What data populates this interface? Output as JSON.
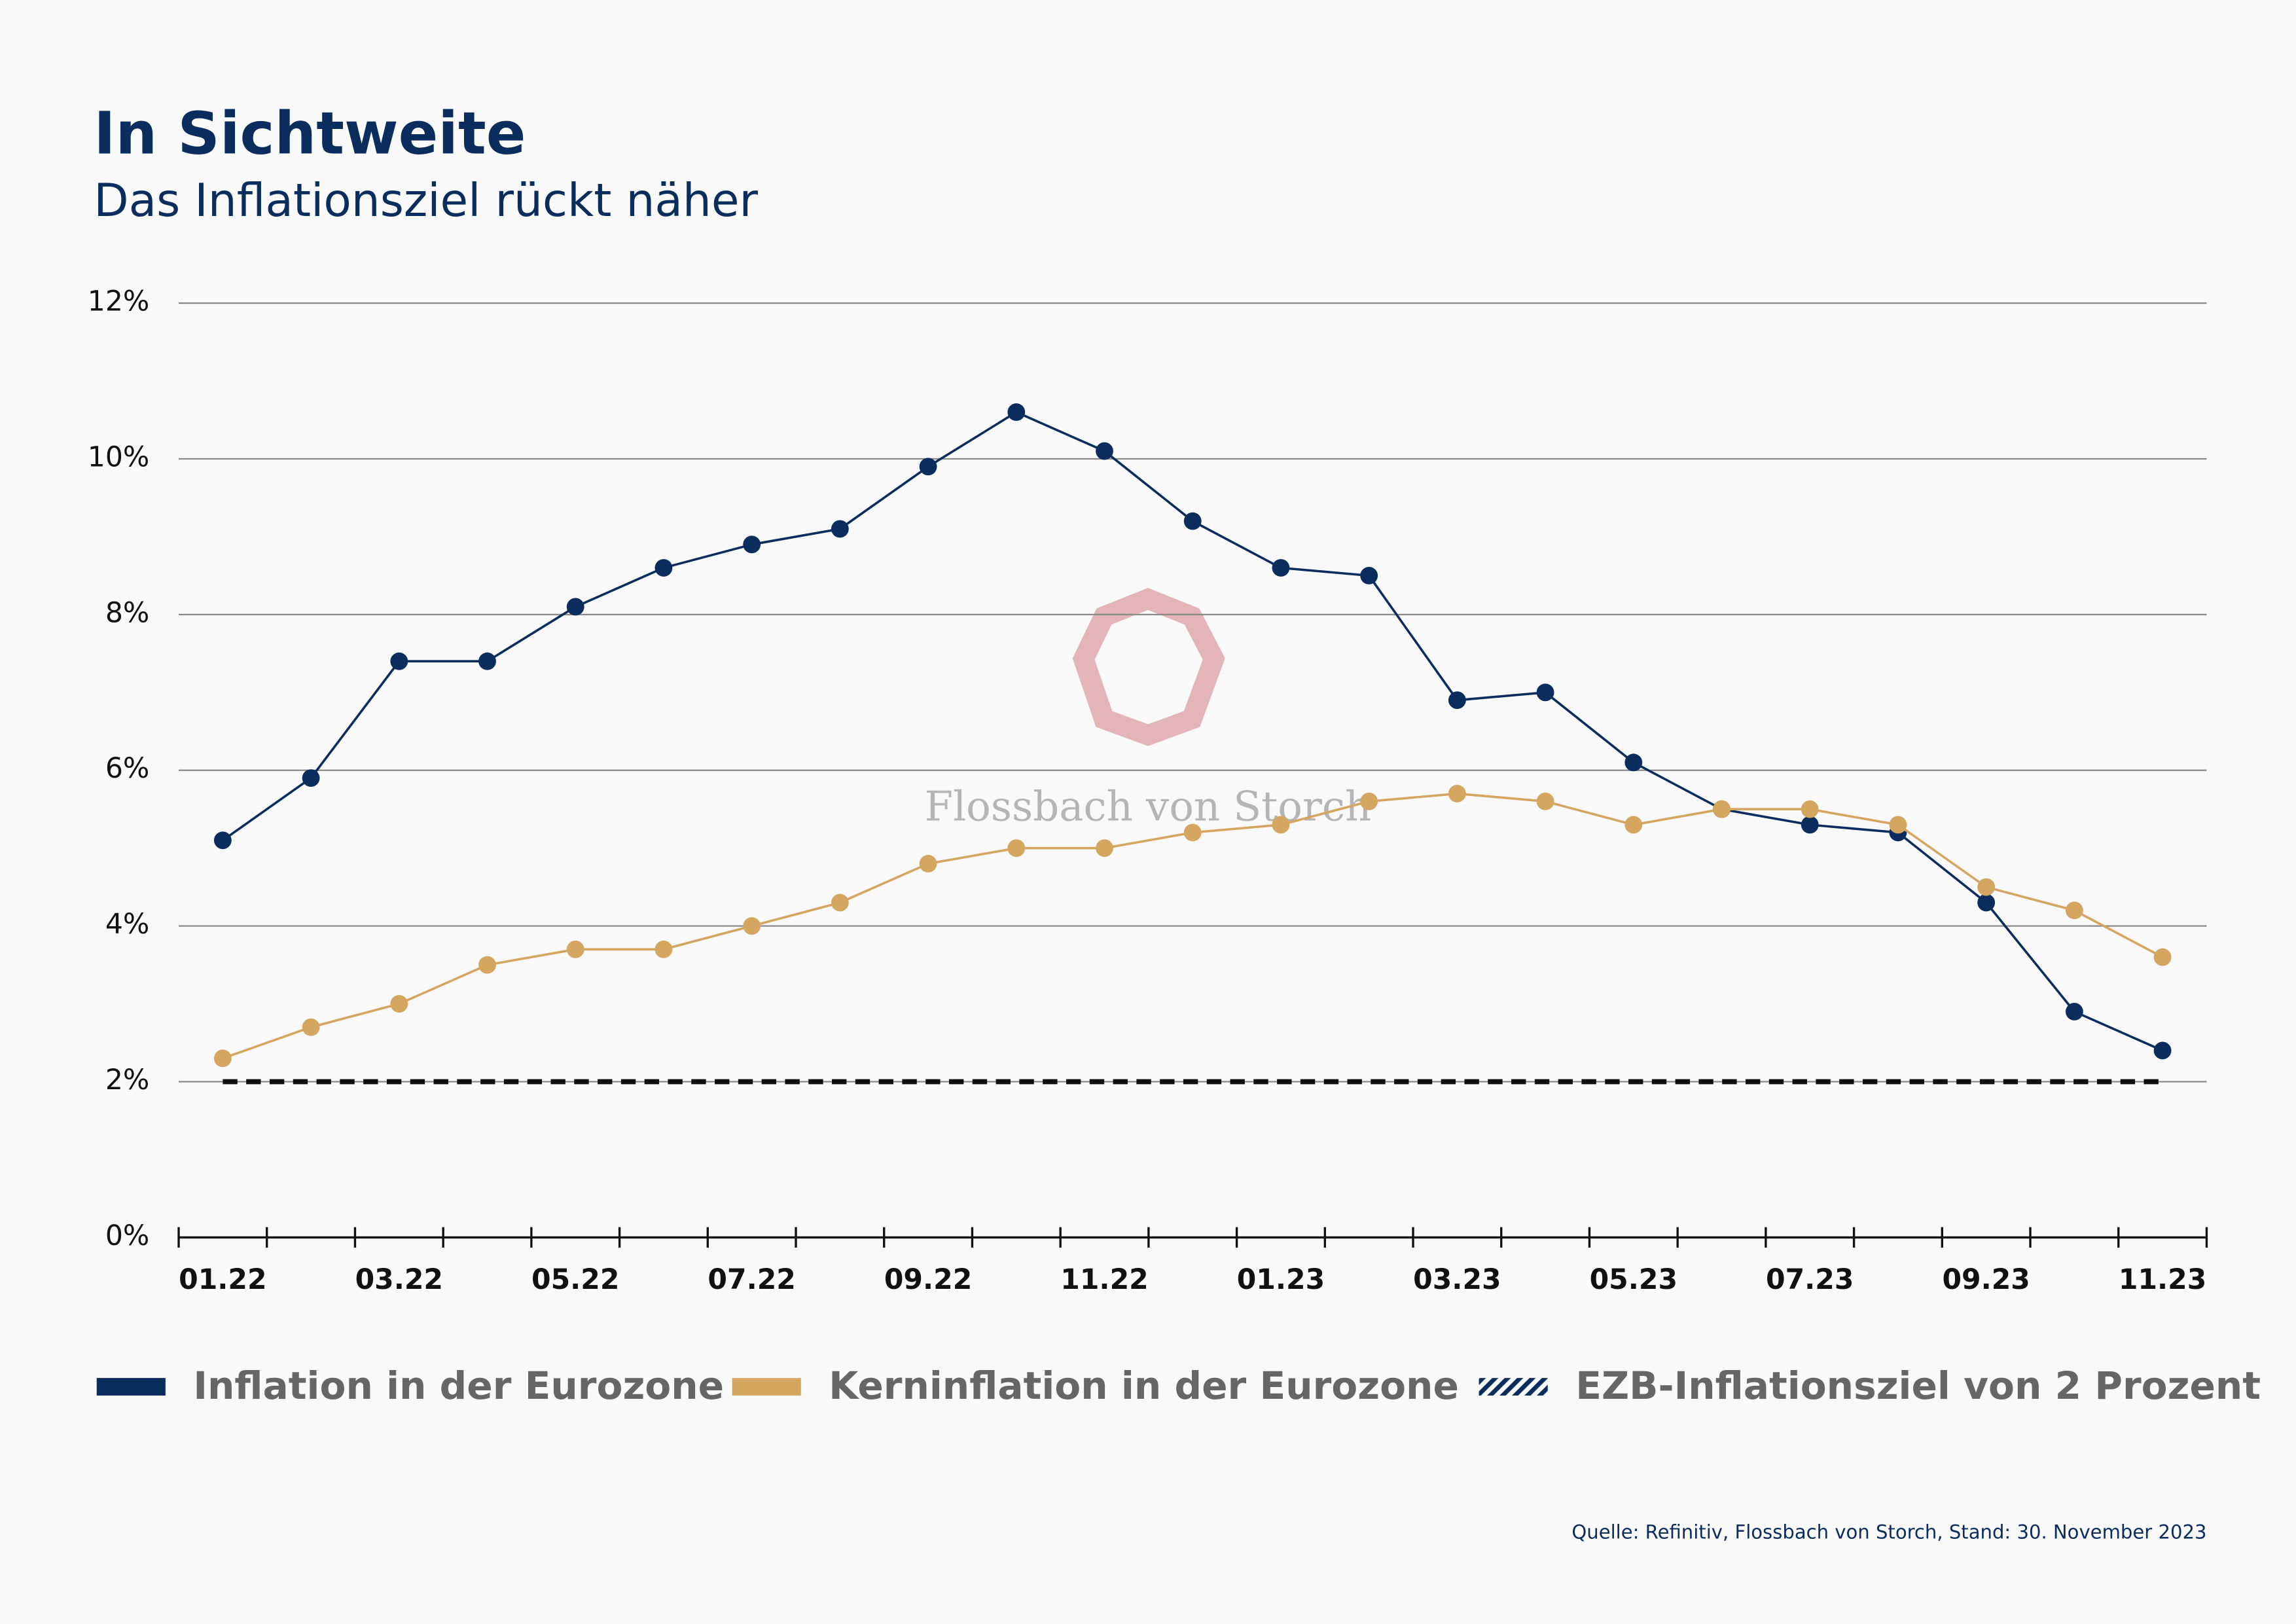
{
  "chart_data": {
    "type": "line",
    "title": "In Sichtweite",
    "subtitle": "Das Inflationsziel rückt näher",
    "watermark": "Flossbach von Storch",
    "source": "Quelle: Refinitiv, Flossbach von Storch, Stand: 30. November 2023",
    "categories": [
      "01.22",
      null,
      "03.22",
      null,
      "05.22",
      null,
      "07.22",
      null,
      "09.22",
      null,
      "11.22",
      null,
      "01.23",
      null,
      "03.23",
      null,
      "05.23",
      null,
      "07.23",
      null,
      "09.23",
      null,
      "11.23"
    ],
    "series": [
      {
        "name": "Inflation in der Eurozone",
        "color": "#0b2d5e",
        "style": "solid",
        "markers": true,
        "values": [
          5.1,
          5.9,
          7.4,
          7.4,
          8.1,
          8.6,
          8.9,
          9.1,
          9.9,
          10.6,
          10.1,
          9.2,
          8.6,
          8.5,
          6.9,
          7.0,
          6.1,
          5.5,
          5.3,
          5.2,
          4.3,
          2.9,
          2.4
        ]
      },
      {
        "name": "Kerninflation in der Eurozone",
        "color": "#d4a660",
        "style": "solid",
        "markers": true,
        "values": [
          2.3,
          2.7,
          3.0,
          3.5,
          3.7,
          3.7,
          4.0,
          4.3,
          4.8,
          5.0,
          5.0,
          5.2,
          5.3,
          5.6,
          5.7,
          5.6,
          5.3,
          5.5,
          5.5,
          5.3,
          4.5,
          4.2,
          3.6
        ]
      },
      {
        "name": "EZB-Inflationsziel von 2 Prozent",
        "color": "#111111",
        "style": "dashed",
        "markers": false,
        "values": [
          2,
          2,
          2,
          2,
          2,
          2,
          2,
          2,
          2,
          2,
          2,
          2,
          2,
          2,
          2,
          2,
          2,
          2,
          2,
          2,
          2,
          2,
          2
        ]
      }
    ],
    "ylim": [
      0,
      12
    ],
    "yticks": [
      {
        "value": 0,
        "label": "0%"
      },
      {
        "value": 2,
        "label": "2%"
      },
      {
        "value": 4,
        "label": "4%"
      },
      {
        "value": 6,
        "label": "6%"
      },
      {
        "value": 8,
        "label": "8%"
      },
      {
        "value": 10,
        "label": "10%"
      },
      {
        "value": 12,
        "label": "12%"
      }
    ],
    "grid": true
  }
}
